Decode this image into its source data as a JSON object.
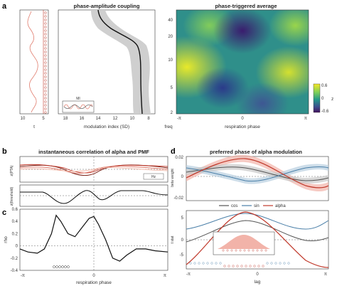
{
  "panels": {
    "a": {
      "letter": "a",
      "coupling_title": "phase-amplitude coupling",
      "triggered_title": "phase-triggered average",
      "t_label": "t",
      "t_ticks": [
        "10",
        "5"
      ],
      "mi_xlabel": "modulation index (SD)",
      "mi_ticks": [
        "18",
        "16",
        "14",
        "12",
        "10",
        "8"
      ],
      "mi_inset_label": "MI",
      "freq_label": "freq",
      "freq_ticks": [
        "40",
        "20",
        "10",
        "5",
        "2"
      ],
      "phase_xlabel": "respiration phase",
      "phase_ticks": [
        "-π",
        "0",
        "π"
      ],
      "colorbar_label": "z",
      "colorbar_ticks": [
        "0.6",
        "0",
        "-0.6"
      ]
    },
    "b": {
      "letter": "b",
      "title": "instantaneous correlation of alpha and PMF",
      "ylabel_top": "z(PTA)",
      "ylabel_bottom": "z(threshold)",
      "legend_label": "Hz"
    },
    "c": {
      "letter": "c",
      "ylabel": "rho",
      "yticks": [
        "0.6",
        "0.4",
        "0.2",
        "0",
        "-0.2",
        "-0.4"
      ],
      "xlabel": "respiration phase",
      "xticks": [
        "-π",
        "0",
        "π"
      ]
    },
    "d": {
      "letter": "d",
      "title": "preferred phase of alpha modulation",
      "ylabel_top": "beta weight",
      "yticks_top": [
        "0.02",
        "0",
        "-0.02"
      ],
      "legend": [
        "cos",
        "sin",
        "alpha"
      ],
      "ylabel_bottom": "t stat",
      "yticks_bottom": [
        "5",
        "0",
        "-5"
      ],
      "xlabel": "lag",
      "xticks": [
        "-π",
        "0",
        "π"
      ]
    }
  },
  "colors": {
    "red": "#c0392b",
    "salmon": "#e8836f",
    "blue_line": "#4a7fa8",
    "gray_line": "#555555",
    "band": "#c8c8c8"
  },
  "chart_data": [
    {
      "type": "heatmap",
      "title": "phase-triggered average",
      "xlabel": "respiration phase",
      "ylabel": "freq",
      "x_ticks": [
        "-π",
        "0",
        "π"
      ],
      "y_ticks": [
        "40",
        "20",
        "10",
        "5",
        "2"
      ],
      "y_scale": "log",
      "colorbar": {
        "label": "z",
        "range": [
          -0.6,
          0.6
        ]
      }
    },
    {
      "type": "line",
      "title": "phase-amplitude coupling",
      "xlabel": "modulation index (SD)",
      "x_ticks": [
        18,
        16,
        14,
        12,
        10,
        8
      ],
      "y": [
        40,
        30,
        20,
        15,
        12,
        10,
        8,
        6,
        5,
        4,
        3,
        2
      ],
      "x": [
        13.5,
        13.0,
        12.0,
        10.5,
        9.5,
        9.0,
        8.8,
        8.5,
        8.5,
        8.3,
        8.2,
        8.3
      ]
    },
    {
      "type": "line",
      "ylabel": "rho",
      "xlabel": "respiration phase",
      "ylim": [
        -0.4,
        0.6
      ],
      "x": [
        -3.14,
        -2.8,
        -2.4,
        -2.1,
        -1.8,
        -1.6,
        -1.4,
        -1.1,
        -0.8,
        -0.5,
        -0.2,
        0,
        0.2,
        0.5,
        0.8,
        1.1,
        1.4,
        1.8,
        2.2,
        2.6,
        3.14
      ],
      "values": [
        -0.05,
        -0.1,
        -0.12,
        -0.05,
        0.2,
        0.5,
        0.4,
        0.2,
        0.15,
        0.3,
        0.45,
        0.48,
        0.35,
        0.1,
        -0.2,
        -0.25,
        -0.15,
        -0.05,
        -0.05,
        -0.08,
        -0.1
      ]
    },
    {
      "type": "line",
      "ylabel": "beta weight",
      "ylim": [
        -0.02,
        0.02
      ],
      "series": [
        {
          "name": "cos",
          "values": [
            0.0,
            0.003,
            0.006,
            0.004,
            0.0,
            -0.004,
            -0.006,
            -0.003,
            0.0
          ]
        },
        {
          "name": "sin",
          "values": [
            0.004,
            0.0,
            -0.004,
            -0.006,
            -0.003,
            0.001,
            0.004,
            0.005,
            0.004
          ]
        },
        {
          "name": "alpha",
          "values": [
            -0.01,
            -0.002,
            0.008,
            0.012,
            0.006,
            -0.003,
            -0.01,
            -0.013,
            -0.01
          ]
        }
      ]
    }
  ]
}
